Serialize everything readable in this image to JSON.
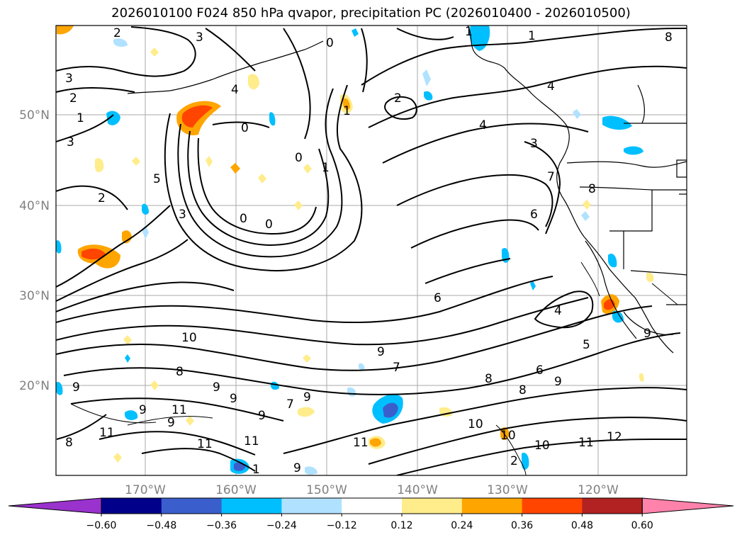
{
  "title": "2026010100 F024 850 hPa qvapor, precipitation PC (2026010400 - 2026010500)",
  "map": {
    "lat_labels": [
      "50°N",
      "40°N",
      "30°N",
      "20°N"
    ],
    "lon_labels": [
      "170°W",
      "160°W",
      "150°W",
      "140°W",
      "130°W",
      "120°W"
    ]
  },
  "contour_labels": [
    "2",
    "3",
    "0",
    "1",
    "1",
    "4",
    "2",
    "1",
    "8",
    "3",
    "3",
    "2",
    "1",
    "4",
    "0",
    "1",
    "0",
    "4",
    "3",
    "7",
    "6",
    "2",
    "5",
    "3",
    "0",
    "0",
    "6",
    "8",
    "4",
    "10",
    "9",
    "7",
    "9",
    "5",
    "6",
    "9",
    "8",
    "8",
    "9",
    "9",
    "9",
    "11",
    "9",
    "7",
    "9",
    "9",
    "8",
    "11",
    "11",
    "11",
    "9",
    "11",
    "10",
    "10",
    "10",
    "11",
    "12",
    "1",
    "9",
    "8",
    "2"
  ],
  "colorbar": {
    "colors": [
      "#9a32cd",
      "#00008b",
      "#3a5fcd",
      "#00bfff",
      "#b0e2ff",
      "#ffffff",
      "#ffec8b",
      "#ffa500",
      "#ff4500",
      "#b22222",
      "#ff82ab"
    ],
    "ticks": [
      "−0.60",
      "−0.48",
      "−0.36",
      "−0.24",
      "−0.12",
      "0.12",
      "0.24",
      "0.36",
      "0.48",
      "0.60"
    ]
  }
}
